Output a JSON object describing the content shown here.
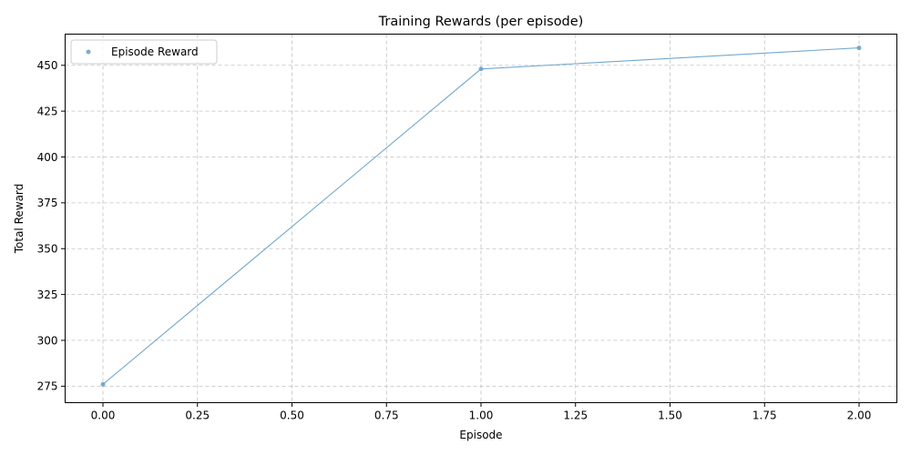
{
  "chart_data": {
    "type": "line",
    "title": "Training Rewards (per episode)",
    "xlabel": "Episode",
    "ylabel": "Total Reward",
    "xlim": [
      -0.1,
      2.1
    ],
    "ylim": [
      266,
      467
    ],
    "xticks": [
      0.0,
      0.25,
      0.5,
      0.75,
      1.0,
      1.25,
      1.5,
      1.75,
      2.0
    ],
    "xtick_labels": [
      "0.00",
      "0.25",
      "0.50",
      "0.75",
      "1.00",
      "1.25",
      "1.50",
      "1.75",
      "2.00"
    ],
    "yticks": [
      275,
      300,
      325,
      350,
      375,
      400,
      425,
      450
    ],
    "ytick_labels": [
      "275",
      "300",
      "325",
      "350",
      "375",
      "400",
      "425",
      "450"
    ],
    "grid": true,
    "legend": "upper-left",
    "series": [
      {
        "name": "Episode Reward",
        "x": [
          0,
          1,
          2
        ],
        "y": [
          276,
          448,
          459.5
        ],
        "color": "#6aa3cc"
      }
    ]
  }
}
